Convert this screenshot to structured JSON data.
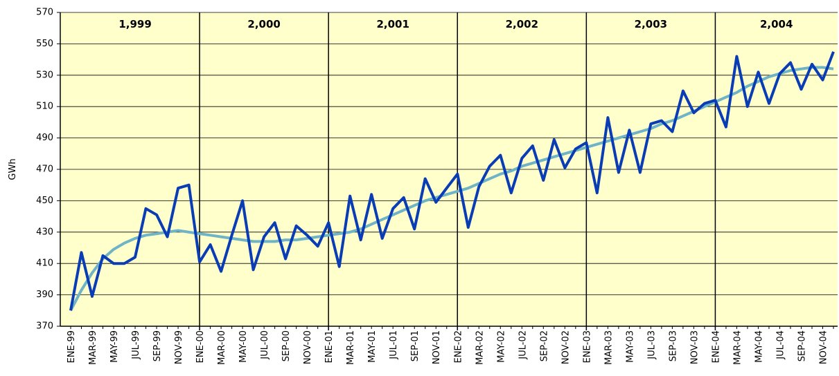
{
  "chart_data": {
    "type": "line",
    "y_label": "GWh",
    "year_labels": [
      "1,999",
      "2,000",
      "2,001",
      "2,002",
      "2,003",
      "2,004"
    ],
    "categories": [
      "ENE-99",
      null,
      "MAR-99",
      null,
      "MAY-99",
      null,
      "JUL-99",
      null,
      "SEP-99",
      null,
      "NOV-99",
      null,
      "ENE-00",
      null,
      "MAR-00",
      null,
      "MAY-00",
      null,
      "JUL-00",
      null,
      "SEP-00",
      null,
      "NOV-00",
      null,
      "ENE-01",
      null,
      "MAR-01",
      null,
      "MAY-01",
      null,
      "JUL-01",
      null,
      "SEP-01",
      null,
      "NOV-01",
      null,
      "ENE-02",
      null,
      "MAR-02",
      null,
      "MAY-02",
      null,
      "JUL-02",
      null,
      "SEP-02",
      null,
      "NOV-02",
      null,
      "ENE-03",
      null,
      "MAR-03",
      null,
      "MAY-03",
      null,
      "JUL-03",
      null,
      "SEP-03",
      null,
      "NOV-03",
      null,
      "ENE-04",
      null,
      "MAR-04",
      null,
      "MAY-04",
      null,
      "JUL-04",
      null,
      "SEP-04",
      null,
      "NOV-04",
      null
    ],
    "series": [
      {
        "color": "#0a3cb4",
        "values": [
          380,
          417,
          389,
          415,
          410,
          410,
          414,
          445,
          441,
          427,
          458,
          460,
          411,
          422,
          405,
          428,
          450,
          406,
          427,
          436,
          413,
          434,
          428,
          421,
          436,
          408,
          453,
          425,
          454,
          426,
          445,
          452,
          432,
          464,
          449,
          458,
          467,
          433,
          459,
          472,
          479,
          455,
          477,
          485,
          463,
          489,
          471,
          483,
          487,
          455,
          503,
          468,
          495,
          468,
          499,
          501,
          494,
          520,
          506,
          512,
          514,
          497,
          542,
          510,
          532,
          512,
          531,
          538,
          521,
          537,
          527,
          545
        ]
      },
      {
        "color": "#6fb4c6",
        "values": [
          380,
          393,
          404,
          413,
          419,
          423,
          426,
          428,
          429,
          430,
          431,
          430,
          429,
          428,
          427,
          426,
          425,
          424,
          424,
          424,
          425,
          425,
          426,
          427,
          428,
          429,
          430,
          432,
          435,
          438,
          441,
          444,
          447,
          450,
          452,
          454,
          456,
          458,
          461,
          464,
          467,
          469,
          472,
          474,
          476,
          478,
          480,
          482,
          484,
          486,
          488,
          490,
          492,
          494,
          496,
          499,
          501,
          504,
          507,
          510,
          513,
          516,
          519,
          523,
          526,
          529,
          531,
          533,
          534,
          535,
          535,
          534
        ]
      }
    ],
    "ylim": [
      370,
      570
    ],
    "yticks": [
      370,
      390,
      410,
      430,
      450,
      470,
      490,
      510,
      530,
      550,
      570
    ],
    "grid": true,
    "background": "#ffffcc"
  }
}
